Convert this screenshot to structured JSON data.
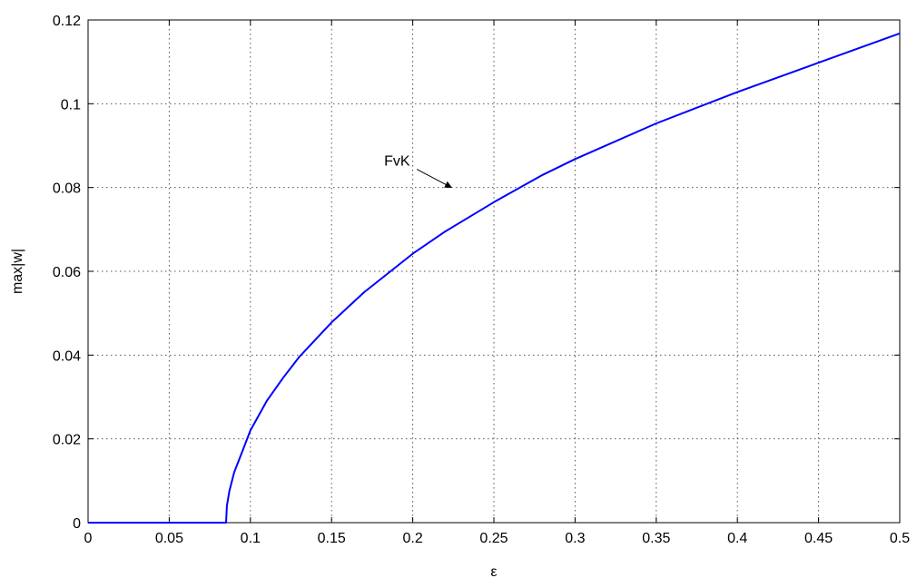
{
  "chart_data": {
    "type": "line",
    "title": "",
    "xlabel": "ε",
    "ylabel": "max|w|",
    "xlim": [
      0,
      0.5
    ],
    "ylim": [
      0,
      0.12
    ],
    "xticks": [
      "0",
      "0.05",
      "0.1",
      "0.15",
      "0.2",
      "0.25",
      "0.3",
      "0.35",
      "0.4",
      "0.45",
      "0.5"
    ],
    "yticks": [
      "0",
      "0.02",
      "0.04",
      "0.06",
      "0.08",
      "0.1",
      "0.12"
    ],
    "grid": true,
    "series": [
      {
        "color": "#0000ff",
        "x": [
          0,
          0.05,
          0.085,
          0.0855,
          0.087,
          0.09,
          0.095,
          0.1,
          0.11,
          0.12,
          0.13,
          0.15,
          0.17,
          0.2,
          0.22,
          0.25,
          0.28,
          0.3,
          0.35,
          0.4,
          0.45,
          0.5
        ],
        "y": [
          0,
          0,
          0,
          0.004,
          0.0075,
          0.012,
          0.017,
          0.022,
          0.029,
          0.0345,
          0.0395,
          0.0478,
          0.055,
          0.0642,
          0.0695,
          0.0765,
          0.083,
          0.0868,
          0.0953,
          0.1028,
          0.1098,
          0.1168
        ]
      }
    ],
    "annotations": [
      {
        "text": "FvK",
        "x": 0.226,
        "y": 0.0796
      }
    ]
  }
}
